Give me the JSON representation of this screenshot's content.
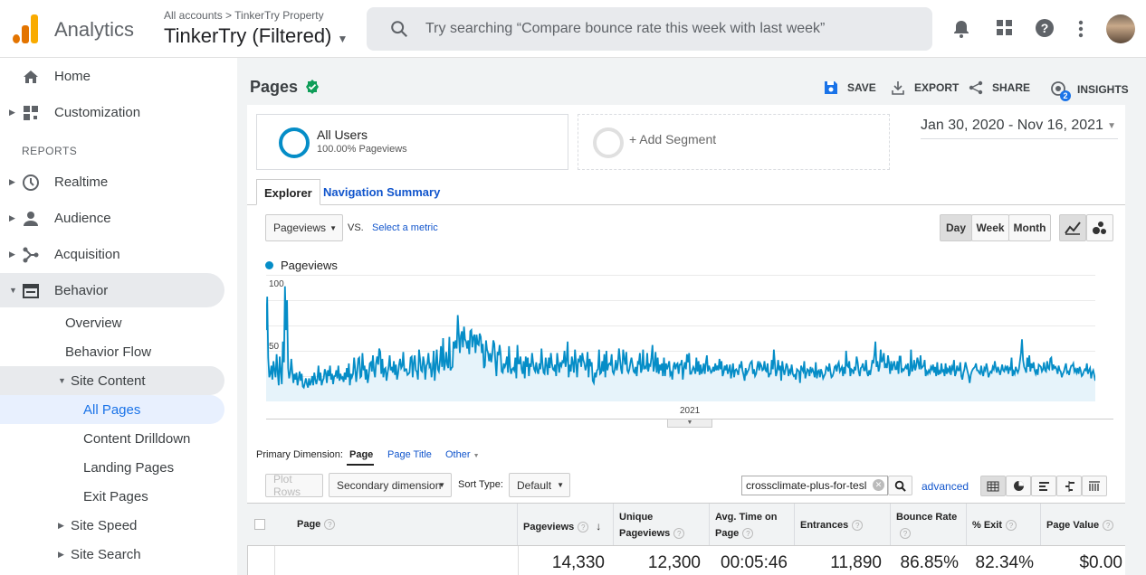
{
  "header": {
    "app_name": "Analytics",
    "account_crumb": "All accounts  >  TinkerTry Property",
    "view_name": "TinkerTry (Filtered)",
    "search_placeholder": "Try searching “Compare bounce rate this week with last week”",
    "colors": {
      "logo_orange": "#f9ab00",
      "logo_dark": "#e37400"
    }
  },
  "sidebar": {
    "home": "Home",
    "customization": "Customization",
    "reports_heading": "REPORTS",
    "realtime": "Realtime",
    "audience": "Audience",
    "acquisition": "Acquisition",
    "behavior": "Behavior",
    "overview": "Overview",
    "behavior_flow": "Behavior Flow",
    "site_content": "Site Content",
    "all_pages": "All Pages",
    "content_drilldown": "Content Drilldown",
    "landing_pages": "Landing Pages",
    "exit_pages": "Exit Pages",
    "site_speed": "Site Speed",
    "site_search": "Site Search"
  },
  "page": {
    "title": "Pages",
    "toolbar": {
      "save": "SAVE",
      "export": "EXPORT",
      "share": "SHARE",
      "insights": "INSIGHTS",
      "insights_badge": "2"
    },
    "segment": {
      "name": "All Users",
      "sub": "100.00% Pageviews",
      "add": "+ Add Segment"
    },
    "date_range": "Jan 30, 2020 - Nov 16, 2021",
    "tabs": {
      "explorer": "Explorer",
      "nav_summary": "Navigation Summary"
    },
    "metric": {
      "selected": "Pageviews",
      "vs": "VS.",
      "select": "Select a metric"
    },
    "granularity": {
      "day": "Day",
      "week": "Week",
      "month": "Month"
    },
    "primary_dimension": {
      "label": "Primary Dimension:",
      "page": "Page",
      "page_title": "Page Title",
      "other": "Other"
    },
    "controls": {
      "plot_rows": "Plot Rows",
      "secondary": "Secondary dimension",
      "sort_label": "Sort Type:",
      "sort_value": "Default",
      "search_value": "crossclimate-plus-for-tesl",
      "advanced": "advanced"
    },
    "table": {
      "headers": {
        "page": "Page",
        "pageviews": "Pageviews",
        "unique": "Unique Pageviews",
        "avg_time": "Avg. Time on Page",
        "entrances": "Entrances",
        "bounce": "Bounce Rate",
        "exit": "% Exit",
        "value": "Page Value"
      },
      "totals": {
        "pageviews": "14,330",
        "unique": "12,300",
        "avg_time": "00:05:46",
        "entrances": "11,890",
        "bounce": "86.85%",
        "exit": "82.34%",
        "value": "$0.00"
      }
    }
  },
  "chart_data": {
    "type": "line",
    "legend": "Pageviews",
    "series": [
      {
        "name": "Pageviews",
        "color": "#058dc7",
        "values": [
          62,
          91,
          38,
          21,
          24,
          31,
          19,
          35,
          27,
          21,
          41,
          26,
          14,
          39,
          26,
          15,
          52,
          34,
          100,
          62,
          88,
          29,
          20,
          25,
          37,
          26,
          16,
          24,
          19,
          25,
          14,
          20,
          26,
          18,
          24,
          13,
          12,
          16,
          20,
          15,
          12,
          20,
          14,
          17,
          22,
          14,
          25,
          19,
          15,
          20,
          31,
          18,
          25,
          14,
          18,
          20,
          28,
          25,
          16,
          27,
          22,
          31,
          19,
          24,
          15,
          22,
          22,
          27,
          20,
          31,
          18,
          24,
          20,
          21,
          17,
          25,
          19,
          29,
          21,
          33,
          14,
          24,
          21,
          24,
          38,
          29,
          17,
          26,
          37,
          38,
          21,
          22,
          42,
          27,
          31,
          19,
          28,
          16,
          22,
          33,
          34,
          26,
          40,
          27,
          21,
          33,
          39,
          32,
          46,
          43,
          24,
          37,
          21,
          28,
          29,
          18,
          25,
          30,
          40,
          27,
          30,
          25,
          35,
          23,
          32,
          19,
          24,
          32,
          37,
          29,
          31,
          43,
          26,
          28,
          28,
          23,
          24,
          25,
          38,
          39,
          21,
          34,
          40,
          27,
          26,
          19,
          45,
          37,
          27,
          26,
          39,
          34,
          19,
          31,
          33,
          42,
          30,
          32,
          21,
          28,
          44,
          18,
          32,
          45,
          28,
          26,
          35,
          48,
          30,
          55,
          27,
          33,
          43,
          32,
          29,
          56,
          27,
          29,
          30,
          52,
          46,
          53,
          46,
          75,
          59,
          42,
          57,
          61,
          47,
          65,
          54,
          52,
          46,
          53,
          41,
          61,
          62,
          47,
          56,
          58,
          42,
          58,
          50,
          49,
          59,
          56,
          42,
          50,
          29,
          31,
          53,
          45,
          42,
          35,
          42,
          34,
          41,
          53,
          50,
          34,
          22,
          43,
          40,
          49,
          41,
          26,
          25,
          33,
          30,
          33,
          39,
          25,
          48,
          30,
          24,
          28,
          29,
          27,
          38,
          20,
          49,
          33,
          33,
          39,
          28,
          24,
          35,
          20,
          39,
          30,
          38,
          22,
          33,
          30,
          42,
          34,
          28,
          26,
          34,
          26,
          24,
          33,
          28,
          46,
          33,
          25,
          24,
          38,
          31,
          23,
          38,
          29,
          42,
          33,
          28,
          27,
          32,
          22,
          42,
          33,
          25,
          34,
          31,
          35,
          34,
          44,
          30,
          36,
          52,
          21,
          32,
          26,
          39,
          33,
          25,
          45,
          34,
          21,
          36,
          35,
          40,
          30,
          42,
          36,
          33,
          27,
          31,
          43,
          21,
          37,
          32,
          34,
          18,
          16,
          25,
          21,
          27,
          28,
          45,
          24,
          25,
          35,
          26,
          41,
          21,
          44,
          27,
          32,
          33,
          32,
          41,
          26,
          24,
          28,
          36,
          27,
          33,
          46,
          37,
          28,
          24,
          45,
          38,
          32,
          43,
          27,
          25,
          28,
          34,
          38,
          32,
          26,
          25,
          30,
          22,
          34,
          33,
          42,
          25,
          28,
          45,
          28,
          30,
          29,
          42,
          26,
          32,
          31,
          38,
          49,
          26,
          31,
          43,
          25,
          38,
          24,
          32,
          27,
          33,
          22,
          38,
          22,
          33,
          28,
          31,
          35,
          23,
          25,
          19,
          30,
          34,
          28,
          32,
          33,
          24,
          32,
          32,
          36,
          19,
          29,
          34,
          28,
          41,
          34,
          42,
          24,
          24,
          27,
          30,
          28,
          24,
          38,
          26,
          35,
          23,
          32,
          24,
          27,
          33,
          24,
          34,
          40,
          26,
          31,
          28,
          25,
          26,
          30,
          26,
          33,
          27,
          31,
          27,
          37,
          28,
          35,
          22,
          25,
          31,
          27,
          32,
          24,
          27,
          32,
          20,
          26,
          33,
          21,
          27,
          28,
          26,
          23,
          31,
          30,
          35,
          27,
          23,
          18,
          29,
          24,
          26,
          28,
          32,
          34,
          35,
          24,
          28,
          22,
          24,
          30,
          35,
          27,
          33,
          31,
          27,
          28,
          35,
          27,
          26,
          33,
          21,
          24,
          24,
          36,
          28,
          45,
          32,
          22,
          26,
          36,
          27,
          31,
          18,
          35,
          28,
          23,
          28,
          33,
          30,
          22,
          27,
          25,
          32,
          24,
          22,
          23,
          19,
          28,
          27,
          26,
          16,
          31,
          28,
          26,
          35,
          20,
          24,
          28,
          27,
          22,
          30,
          26,
          28,
          25,
          21,
          34,
          20,
          26,
          27,
          21,
          28,
          25,
          20,
          22,
          24,
          30,
          29,
          26,
          33,
          26,
          21,
          22,
          25,
          30,
          31,
          26,
          32,
          34,
          26,
          28,
          30,
          22,
          30,
          24,
          44,
          31,
          30,
          35,
          22,
          28,
          27,
          24,
          30,
          27,
          39,
          34,
          26,
          22,
          29,
          30,
          33,
          27,
          27,
          36,
          25,
          22,
          27,
          23,
          29,
          36,
          33,
          41,
          52,
          30,
          35,
          26,
          30,
          45,
          34,
          36,
          42,
          29,
          33,
          29,
          40,
          33,
          24,
          35,
          27,
          32,
          35,
          28,
          28,
          35,
          24,
          39,
          39,
          25,
          28,
          27,
          29,
          31,
          28,
          33,
          22,
          25,
          45,
          26,
          29,
          36,
          27,
          31,
          38,
          34,
          28,
          40,
          29,
          30,
          31,
          36,
          22,
          26,
          24,
          27,
          25,
          30,
          28,
          32,
          25,
          30,
          22,
          34,
          23,
          26,
          24,
          33,
          26,
          27,
          22,
          33,
          24,
          28,
          26,
          31,
          23,
          30,
          28,
          36,
          22,
          25,
          31,
          27,
          27,
          34,
          22,
          19,
          25,
          28,
          34,
          30,
          26,
          22,
          16,
          23,
          26,
          28,
          29,
          30,
          33,
          27,
          27,
          25,
          24,
          31,
          25,
          22,
          29,
          27,
          33,
          28,
          21,
          24,
          26,
          25,
          30,
          28,
          35,
          29,
          25,
          30,
          27,
          23,
          27,
          32,
          27,
          26,
          30,
          28,
          31,
          24,
          29,
          28,
          38,
          22,
          26,
          24,
          30,
          27,
          25,
          28,
          35,
          42,
          54,
          36,
          30,
          28,
          25,
          38,
          30,
          40,
          26,
          33,
          29,
          34,
          27,
          24,
          28,
          23,
          32,
          31,
          30,
          26,
          28,
          34,
          27,
          26,
          35,
          29,
          28,
          37,
          38,
          27,
          32,
          29,
          30,
          28,
          24,
          31,
          27,
          26,
          21,
          24,
          26,
          30,
          33,
          25,
          26,
          23,
          28,
          31,
          31,
          33,
          26,
          28,
          25,
          29,
          24,
          30,
          27,
          22,
          23,
          26,
          28,
          27,
          33,
          24,
          27,
          29,
          20,
          25,
          27,
          23,
          18
        ]
      }
    ],
    "y_ticks": [
      "100",
      "50"
    ],
    "x_tick": "2021",
    "ylim": [
      0,
      110
    ]
  }
}
